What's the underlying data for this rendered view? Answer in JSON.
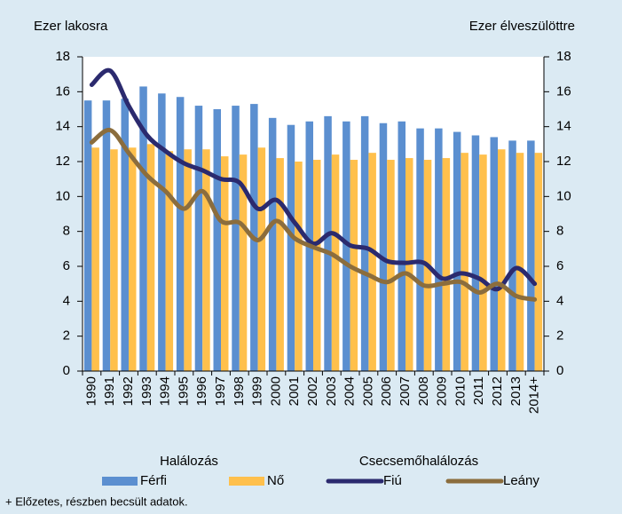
{
  "chart_data": {
    "type": "bar_line",
    "y_label": "Ezer lakosra",
    "y2_label": "Ezer élveszülöttre",
    "categories": [
      "1990",
      "1991",
      "1992",
      "1993",
      "1994",
      "1995",
      "1996",
      "1997",
      "1998",
      "1999",
      "2000",
      "2001",
      "2002",
      "2003",
      "2004",
      "2005",
      "2006",
      "2007",
      "2008",
      "2009",
      "2010",
      "2011",
      "2012",
      "2013",
      "2014+"
    ],
    "ylim": [
      0,
      18
    ],
    "yticks": [
      0,
      2,
      4,
      6,
      8,
      10,
      12,
      14,
      16,
      18
    ],
    "y2lim": [
      0,
      18
    ],
    "y2ticks": [
      0,
      2,
      4,
      6,
      8,
      10,
      12,
      14,
      16,
      18
    ],
    "legend_groups": [
      "Halálozás",
      "Csecsemőhalálozás"
    ],
    "series": [
      {
        "name": "Férfi",
        "color": "#5b8fd0",
        "type": "bar",
        "values": [
          15.5,
          15.5,
          15.6,
          16.3,
          15.9,
          15.7,
          15.2,
          15.0,
          15.2,
          15.3,
          14.5,
          14.1,
          14.3,
          14.6,
          14.3,
          14.6,
          14.2,
          14.3,
          13.9,
          13.9,
          13.7,
          13.5,
          13.4,
          13.2,
          13.2
        ]
      },
      {
        "name": "Nő",
        "color": "#ffc04c",
        "type": "bar",
        "values": [
          12.8,
          12.7,
          12.8,
          13.0,
          12.6,
          12.7,
          12.7,
          12.3,
          12.4,
          12.8,
          12.2,
          12.0,
          12.1,
          12.4,
          12.1,
          12.5,
          12.1,
          12.2,
          12.1,
          12.2,
          12.5,
          12.4,
          12.7,
          12.5,
          12.5
        ]
      },
      {
        "name": "Fiú",
        "color": "#2b2a6e",
        "type": "line",
        "axis": "y2",
        "values": [
          16.4,
          17.2,
          15.2,
          13.5,
          12.6,
          11.9,
          11.5,
          11.0,
          10.8,
          9.3,
          9.8,
          8.5,
          7.3,
          7.9,
          7.2,
          7.0,
          6.3,
          6.2,
          6.2,
          5.3,
          5.6,
          5.3,
          4.7,
          5.9,
          5.0
        ]
      },
      {
        "name": "Leány",
        "color": "#8b6d3d",
        "type": "line",
        "axis": "y2",
        "values": [
          13.1,
          13.8,
          12.5,
          11.2,
          10.3,
          9.3,
          10.3,
          8.6,
          8.5,
          7.5,
          8.6,
          7.6,
          7.1,
          6.7,
          6.0,
          5.5,
          5.1,
          5.6,
          4.9,
          5.0,
          5.1,
          4.5,
          5.0,
          4.3,
          4.1
        ]
      }
    ],
    "note": "+ Előzetes, részben becsült adatok."
  }
}
